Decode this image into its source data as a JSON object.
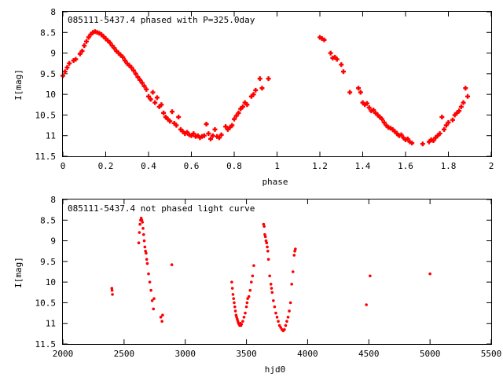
{
  "chart_data": [
    {
      "type": "scatter",
      "title": "085111-5437.4 phased with P=325.0day",
      "xlabel": "phase",
      "ylabel": "I[mag]",
      "xlim": [
        0,
        2
      ],
      "ylim": [
        8,
        11.5
      ],
      "y_inverted": true,
      "grid": false,
      "xticks": [
        "0",
        "0.2",
        "0.4",
        "0.6",
        "0.8",
        "1",
        "1.2",
        "1.4",
        "1.6",
        "1.8",
        "2"
      ],
      "yticks": [
        "8",
        "8.5",
        "9",
        "9.5",
        "10",
        "10.5",
        "11",
        "11.5"
      ],
      "series": [
        {
          "color": "#ff0000",
          "points": [
            [
              0.0,
              9.55
            ],
            [
              0.01,
              9.45
            ],
            [
              0.02,
              9.35
            ],
            [
              0.03,
              9.25
            ],
            [
              0.05,
              9.18
            ],
            [
              0.06,
              9.15
            ],
            [
              0.08,
              9.02
            ],
            [
              0.09,
              8.95
            ],
            [
              0.1,
              8.82
            ],
            [
              0.11,
              8.72
            ],
            [
              0.12,
              8.62
            ],
            [
              0.13,
              8.55
            ],
            [
              0.14,
              8.5
            ],
            [
              0.15,
              8.48
            ],
            [
              0.16,
              8.5
            ],
            [
              0.17,
              8.52
            ],
            [
              0.18,
              8.55
            ],
            [
              0.19,
              8.6
            ],
            [
              0.2,
              8.65
            ],
            [
              0.21,
              8.7
            ],
            [
              0.22,
              8.75
            ],
            [
              0.23,
              8.82
            ],
            [
              0.24,
              8.88
            ],
            [
              0.25,
              8.95
            ],
            [
              0.26,
              9.0
            ],
            [
              0.27,
              9.05
            ],
            [
              0.28,
              9.1
            ],
            [
              0.29,
              9.18
            ],
            [
              0.3,
              9.25
            ],
            [
              0.31,
              9.3
            ],
            [
              0.32,
              9.35
            ],
            [
              0.33,
              9.42
            ],
            [
              0.34,
              9.5
            ],
            [
              0.35,
              9.58
            ],
            [
              0.36,
              9.65
            ],
            [
              0.37,
              9.72
            ],
            [
              0.38,
              9.8
            ],
            [
              0.39,
              9.88
            ],
            [
              0.4,
              10.05
            ],
            [
              0.41,
              10.12
            ],
            [
              0.42,
              9.95
            ],
            [
              0.43,
              10.2
            ],
            [
              0.44,
              10.08
            ],
            [
              0.45,
              10.3
            ],
            [
              0.46,
              10.25
            ],
            [
              0.47,
              10.45
            ],
            [
              0.48,
              10.55
            ],
            [
              0.49,
              10.6
            ],
            [
              0.5,
              10.65
            ],
            [
              0.51,
              10.42
            ],
            [
              0.52,
              10.7
            ],
            [
              0.53,
              10.75
            ],
            [
              0.54,
              10.55
            ],
            [
              0.55,
              10.85
            ],
            [
              0.56,
              10.9
            ],
            [
              0.57,
              10.95
            ],
            [
              0.58,
              10.92
            ],
            [
              0.59,
              10.98
            ],
            [
              0.6,
              11.0
            ],
            [
              0.61,
              10.95
            ],
            [
              0.62,
              11.02
            ],
            [
              0.63,
              11.0
            ],
            [
              0.64,
              11.05
            ],
            [
              0.65,
              11.02
            ],
            [
              0.66,
              11.0
            ],
            [
              0.67,
              10.72
            ],
            [
              0.68,
              10.95
            ],
            [
              0.69,
              11.08
            ],
            [
              0.7,
              11.0
            ],
            [
              0.71,
              10.85
            ],
            [
              0.72,
              11.02
            ],
            [
              0.73,
              11.05
            ],
            [
              0.74,
              10.98
            ],
            [
              0.76,
              10.78
            ],
            [
              0.77,
              10.85
            ],
            [
              0.78,
              10.8
            ],
            [
              0.79,
              10.75
            ],
            [
              0.8,
              10.6
            ],
            [
              0.81,
              10.52
            ],
            [
              0.82,
              10.45
            ],
            [
              0.83,
              10.35
            ],
            [
              0.84,
              10.3
            ],
            [
              0.85,
              10.2
            ],
            [
              0.86,
              10.25
            ],
            [
              0.88,
              10.05
            ],
            [
              0.89,
              10.0
            ],
            [
              0.9,
              9.9
            ],
            [
              0.92,
              9.62
            ],
            [
              0.93,
              9.85
            ],
            [
              0.96,
              9.62
            ],
            [
              1.2,
              8.62
            ],
            [
              1.21,
              8.65
            ],
            [
              1.22,
              8.68
            ],
            [
              1.25,
              9.0
            ],
            [
              1.26,
              9.12
            ],
            [
              1.27,
              9.1
            ],
            [
              1.28,
              9.15
            ],
            [
              1.3,
              9.28
            ],
            [
              1.31,
              9.45
            ],
            [
              1.34,
              9.95
            ],
            [
              1.38,
              9.85
            ],
            [
              1.39,
              9.95
            ],
            [
              1.4,
              10.2
            ],
            [
              1.41,
              10.25
            ],
            [
              1.42,
              10.22
            ],
            [
              1.43,
              10.32
            ],
            [
              1.44,
              10.4
            ],
            [
              1.45,
              10.38
            ],
            [
              1.46,
              10.45
            ],
            [
              1.47,
              10.5
            ],
            [
              1.48,
              10.55
            ],
            [
              1.49,
              10.6
            ],
            [
              1.5,
              10.68
            ],
            [
              1.51,
              10.75
            ],
            [
              1.52,
              10.8
            ],
            [
              1.53,
              10.82
            ],
            [
              1.54,
              10.85
            ],
            [
              1.55,
              10.9
            ],
            [
              1.56,
              10.95
            ],
            [
              1.57,
              11.0
            ],
            [
              1.58,
              10.98
            ],
            [
              1.59,
              11.05
            ],
            [
              1.6,
              11.1
            ],
            [
              1.61,
              11.08
            ],
            [
              1.62,
              11.15
            ],
            [
              1.63,
              11.18
            ],
            [
              1.68,
              11.2
            ],
            [
              1.71,
              11.15
            ],
            [
              1.72,
              11.1
            ],
            [
              1.73,
              11.12
            ],
            [
              1.74,
              11.05
            ],
            [
              1.75,
              11.0
            ],
            [
              1.76,
              10.95
            ],
            [
              1.77,
              10.55
            ],
            [
              1.78,
              10.85
            ],
            [
              1.79,
              10.75
            ],
            [
              1.8,
              10.68
            ],
            [
              1.82,
              10.62
            ],
            [
              1.83,
              10.5
            ],
            [
              1.84,
              10.45
            ],
            [
              1.85,
              10.4
            ],
            [
              1.86,
              10.3
            ],
            [
              1.87,
              10.2
            ],
            [
              1.88,
              9.85
            ],
            [
              1.89,
              10.05
            ]
          ]
        }
      ]
    },
    {
      "type": "scatter",
      "title": "085111-5437.4 not phased light curve",
      "xlabel": "hjd0",
      "ylabel": "I[mag]",
      "xlim": [
        2000,
        5500
      ],
      "ylim": [
        8,
        11.5
      ],
      "y_inverted": true,
      "grid": false,
      "xticks": [
        "2000",
        "2500",
        "3000",
        "3500",
        "4000",
        "4500",
        "5000",
        "5500"
      ],
      "yticks": [
        "8",
        "8.5",
        "9",
        "9.5",
        "10",
        "10.5",
        "11",
        "11.5"
      ],
      "series": [
        {
          "color": "#ff0000",
          "points": [
            [
              2400,
              10.15
            ],
            [
              2402,
              10.2
            ],
            [
              2405,
              10.3
            ],
            [
              2620,
              9.05
            ],
            [
              2625,
              8.8
            ],
            [
              2630,
              8.6
            ],
            [
              2635,
              8.5
            ],
            [
              2640,
              8.45
            ],
            [
              2645,
              8.5
            ],
            [
              2650,
              8.55
            ],
            [
              2655,
              8.7
            ],
            [
              2660,
              8.85
            ],
            [
              2665,
              9.0
            ],
            [
              2670,
              9.15
            ],
            [
              2675,
              9.25
            ],
            [
              2680,
              9.3
            ],
            [
              2685,
              9.45
            ],
            [
              2690,
              9.55
            ],
            [
              2700,
              9.8
            ],
            [
              2710,
              10.0
            ],
            [
              2720,
              10.2
            ],
            [
              2730,
              10.45
            ],
            [
              2740,
              10.65
            ],
            [
              2745,
              10.4
            ],
            [
              2800,
              10.85
            ],
            [
              2810,
              10.95
            ],
            [
              2815,
              10.8
            ],
            [
              2890,
              9.58
            ],
            [
              3380,
              10.0
            ],
            [
              3385,
              10.15
            ],
            [
              3390,
              10.3
            ],
            [
              3395,
              10.4
            ],
            [
              3400,
              10.5
            ],
            [
              3405,
              10.6
            ],
            [
              3410,
              10.7
            ],
            [
              3415,
              10.8
            ],
            [
              3420,
              10.85
            ],
            [
              3425,
              10.9
            ],
            [
              3430,
              10.95
            ],
            [
              3435,
              11.0
            ],
            [
              3440,
              11.02
            ],
            [
              3445,
              11.05
            ],
            [
              3450,
              11.0
            ],
            [
              3455,
              11.05
            ],
            [
              3460,
              11.02
            ],
            [
              3470,
              10.95
            ],
            [
              3480,
              10.85
            ],
            [
              3490,
              10.75
            ],
            [
              3500,
              10.6
            ],
            [
              3505,
              10.5
            ],
            [
              3510,
              10.4
            ],
            [
              3520,
              10.35
            ],
            [
              3530,
              10.2
            ],
            [
              3540,
              10.0
            ],
            [
              3550,
              9.85
            ],
            [
              3560,
              9.6
            ],
            [
              3640,
              8.6
            ],
            [
              3645,
              8.65
            ],
            [
              3650,
              8.85
            ],
            [
              3655,
              8.9
            ],
            [
              3660,
              9.0
            ],
            [
              3665,
              9.05
            ],
            [
              3670,
              9.15
            ],
            [
              3675,
              9.25
            ],
            [
              3680,
              9.45
            ],
            [
              3690,
              9.85
            ],
            [
              3700,
              10.05
            ],
            [
              3705,
              10.15
            ],
            [
              3710,
              10.25
            ],
            [
              3720,
              10.45
            ],
            [
              3730,
              10.6
            ],
            [
              3740,
              10.75
            ],
            [
              3750,
              10.85
            ],
            [
              3760,
              10.95
            ],
            [
              3770,
              11.05
            ],
            [
              3780,
              11.1
            ],
            [
              3790,
              11.15
            ],
            [
              3800,
              11.18
            ],
            [
              3810,
              11.15
            ],
            [
              3820,
              11.05
            ],
            [
              3830,
              10.95
            ],
            [
              3840,
              10.85
            ],
            [
              3850,
              10.7
            ],
            [
              3860,
              10.5
            ],
            [
              3870,
              10.05
            ],
            [
              3880,
              9.75
            ],
            [
              3890,
              9.35
            ],
            [
              3895,
              9.25
            ],
            [
              3900,
              9.2
            ],
            [
              4480,
              10.55
            ],
            [
              4510,
              9.85
            ],
            [
              5000,
              9.8
            ]
          ]
        }
      ]
    }
  ]
}
